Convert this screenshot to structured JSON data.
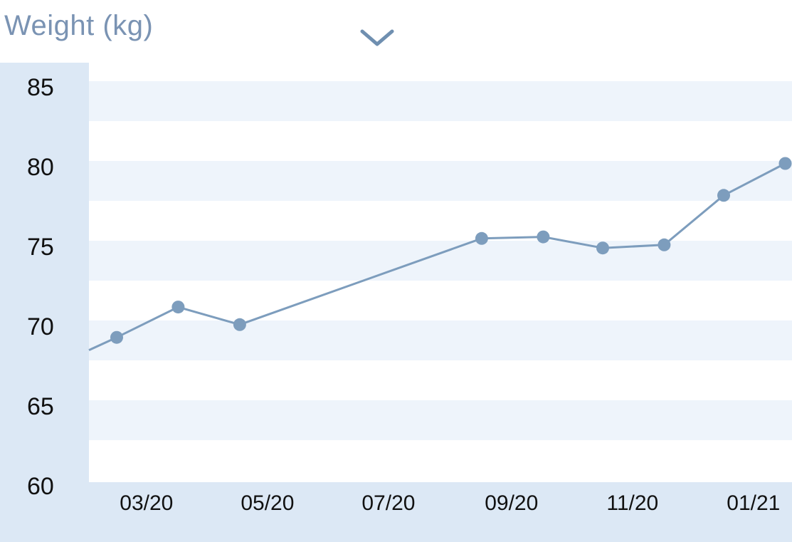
{
  "header": {
    "title": "Weight (kg)",
    "dropdown_icon": "chevron-down-icon"
  },
  "colors": {
    "line": "#7d9dbd",
    "point": "#7d9dbd",
    "axis_band": "#dce8f5",
    "stripe": "#eef4fb",
    "title": "#7a93b3"
  },
  "chart_data": {
    "type": "line",
    "title": "Weight (kg)",
    "xlabel": "",
    "ylabel": "",
    "ylim": [
      60,
      85
    ],
    "yticks": [
      85,
      80,
      75,
      70,
      65,
      60
    ],
    "xlim": [
      "2020-02-01",
      "2021-01-05"
    ],
    "xticks": [
      {
        "date": "2020-03-01",
        "label": "03/20"
      },
      {
        "date": "2020-05-01",
        "label": "05/20"
      },
      {
        "date": "2020-07-01",
        "label": "07/20"
      },
      {
        "date": "2020-09-01",
        "label": "09/20"
      },
      {
        "date": "2020-11-01",
        "label": "11/20"
      },
      {
        "date": "2021-01-01",
        "label": "01/21"
      }
    ],
    "grid": true,
    "series": [
      {
        "line_starts_from": {
          "date": "2020-02-01",
          "value": 68.5
        },
        "points": [
          {
            "date": "2020-02-15",
            "value": 69.3
          },
          {
            "date": "2020-03-17",
            "value": 71.2
          },
          {
            "date": "2020-04-17",
            "value": 70.1
          },
          {
            "date": "2020-08-17",
            "value": 75.5
          },
          {
            "date": "2020-09-17",
            "value": 75.6
          },
          {
            "date": "2020-10-17",
            "value": 74.9
          },
          {
            "date": "2020-11-17",
            "value": 75.1
          },
          {
            "date": "2020-12-17",
            "value": 78.2
          },
          {
            "date": "2021-01-17",
            "value": 80.2
          }
        ]
      }
    ]
  }
}
